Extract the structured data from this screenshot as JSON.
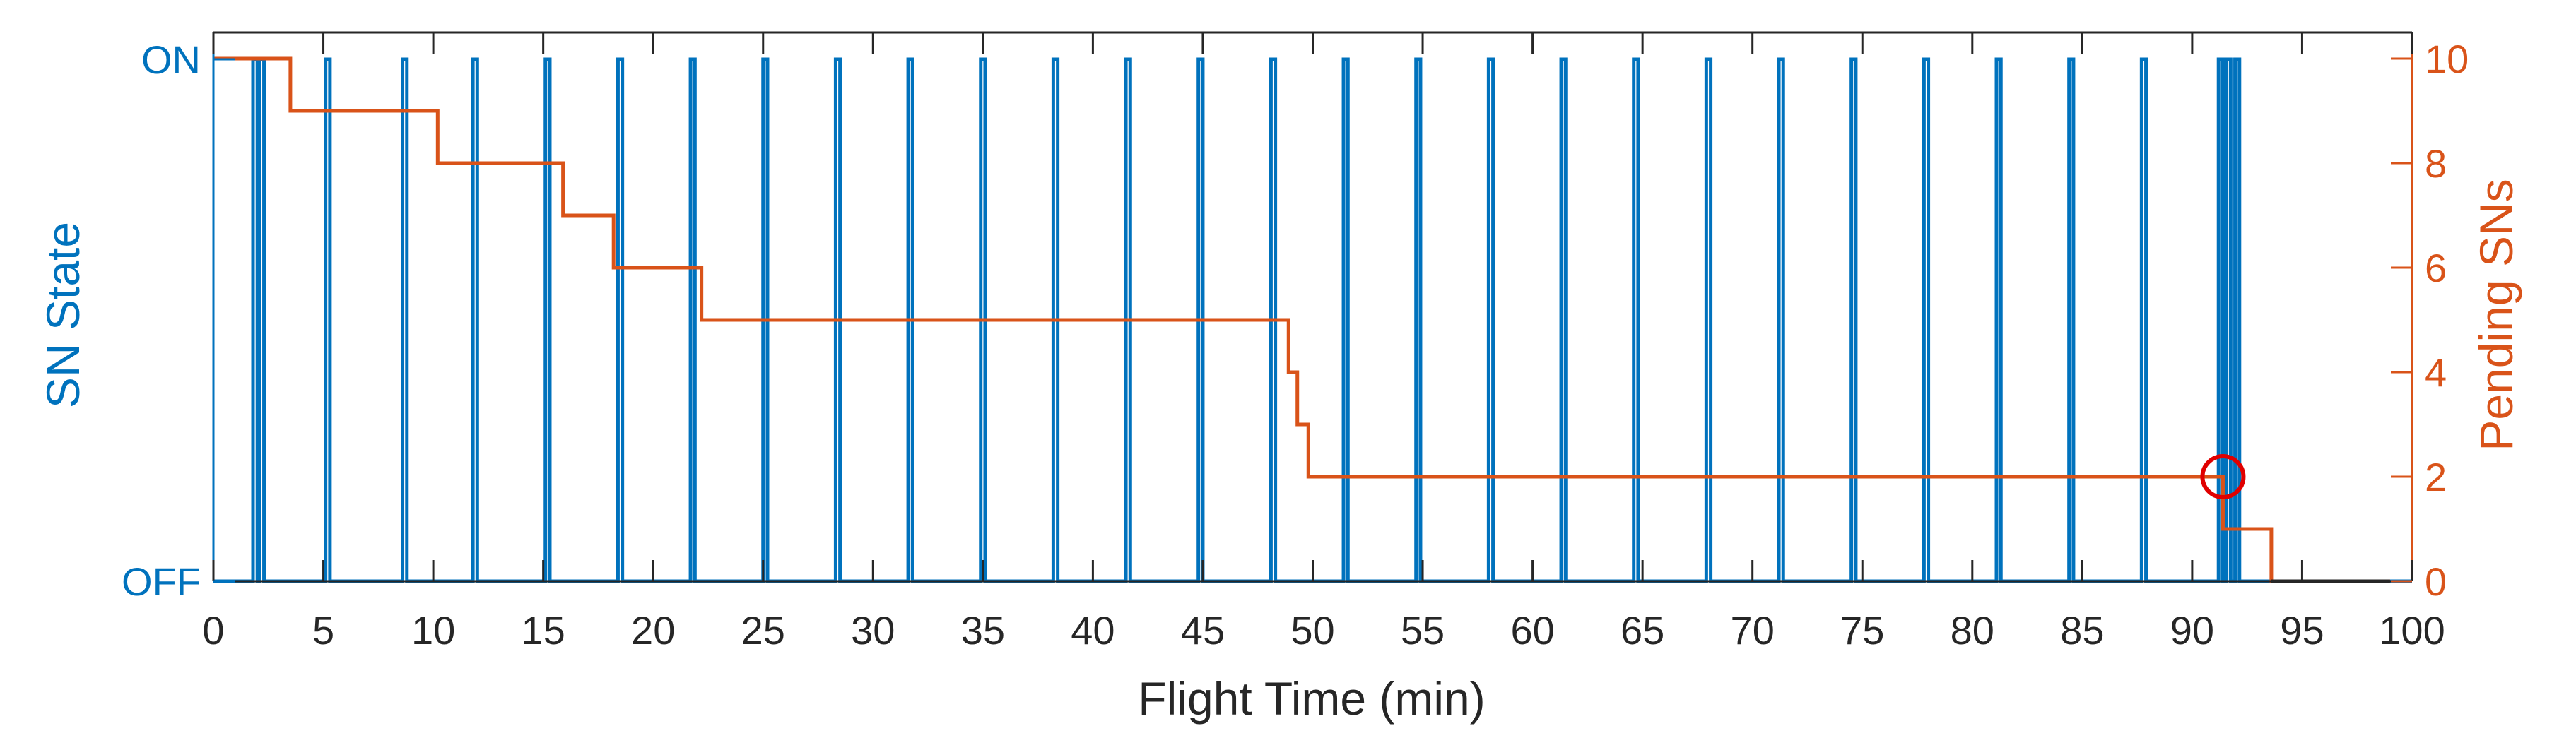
{
  "chart_data": {
    "type": "line",
    "xlabel": "Flight Time (min)",
    "ylabel_left": "SN State",
    "ylabel_right": "Pending SNs",
    "xlim": [
      0,
      100
    ],
    "x_ticks": [
      0,
      5,
      10,
      15,
      20,
      25,
      30,
      35,
      40,
      45,
      50,
      55,
      60,
      65,
      70,
      75,
      80,
      85,
      90,
      95,
      100
    ],
    "y_left_ticks": [
      {
        "value": 1,
        "label": "ON"
      },
      {
        "value": 0,
        "label": "OFF"
      }
    ],
    "ylim_right": [
      0,
      10.5
    ],
    "y_right_ticks": [
      0,
      2,
      4,
      6,
      8,
      10
    ],
    "colors": {
      "sn_state": "#0072BD",
      "pending": "#D95319",
      "marker": "#E00000",
      "axis": "#262626"
    },
    "series": [
      {
        "axis": "left",
        "color": "#0072BD",
        "style": "state-pulses",
        "on_intervals": [
          [
            1.8,
            2.0
          ],
          [
            2.1,
            2.3
          ],
          [
            5.1,
            5.3
          ],
          [
            8.6,
            8.8
          ],
          [
            11.8,
            12.0
          ],
          [
            15.1,
            15.3
          ],
          [
            18.4,
            18.6
          ],
          [
            21.7,
            21.9
          ],
          [
            25.0,
            25.2
          ],
          [
            28.3,
            28.5
          ],
          [
            31.6,
            31.8
          ],
          [
            34.9,
            35.1
          ],
          [
            38.2,
            38.4
          ],
          [
            41.5,
            41.7
          ],
          [
            44.8,
            45.0
          ],
          [
            48.1,
            48.3
          ],
          [
            51.4,
            51.6
          ],
          [
            54.7,
            54.9
          ],
          [
            58.0,
            58.2
          ],
          [
            61.3,
            61.5
          ],
          [
            64.6,
            64.8
          ],
          [
            67.9,
            68.1
          ],
          [
            71.2,
            71.4
          ],
          [
            74.5,
            74.7
          ],
          [
            77.8,
            78.0
          ],
          [
            81.1,
            81.3
          ],
          [
            84.4,
            84.6
          ],
          [
            87.7,
            87.9
          ],
          [
            91.2,
            91.4
          ],
          [
            91.55,
            91.75
          ],
          [
            91.95,
            92.15
          ]
        ]
      },
      {
        "axis": "right",
        "color": "#D95319",
        "style": "step",
        "x": [
          0,
          3.5,
          10.2,
          15.9,
          18.2,
          22.2,
          48.9,
          49.3,
          49.8,
          50.5,
          91.4,
          93.6,
          99
        ],
        "y": [
          10,
          9,
          8,
          7,
          6,
          5,
          4,
          3,
          2,
          2,
          1,
          0,
          0
        ]
      }
    ],
    "annotations": [
      {
        "type": "circle",
        "x": 91.4,
        "y_right": 2,
        "color": "#E00000"
      }
    ]
  }
}
